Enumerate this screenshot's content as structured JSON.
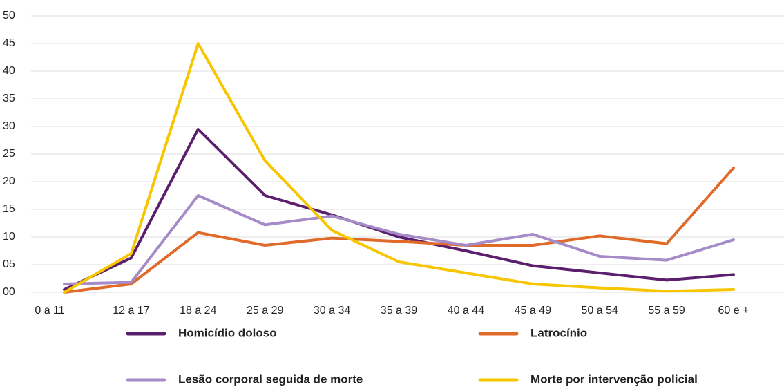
{
  "chart_data": {
    "type": "line",
    "categories": [
      "0 a 11",
      "12 a 17",
      "18 a 24",
      "25 a 29",
      "30 a 34",
      "35 a 39",
      "40 a 44",
      "45 a 49",
      "50 a 54",
      "55 a 59",
      "60 e +"
    ],
    "series": [
      {
        "name": "Homicídio doloso",
        "color": "#5b1f6e",
        "values": [
          0.5,
          6.2,
          29.5,
          17.5,
          14,
          10,
          7.5,
          4.8,
          3.5,
          2.2,
          3.2
        ]
      },
      {
        "name": "Latrocínio",
        "color": "#e06a2a",
        "values": [
          0,
          1.5,
          10.8,
          8.5,
          9.8,
          9.2,
          8.5,
          8.5,
          10.2,
          8.8,
          22.5
        ]
      },
      {
        "name": "Lesão corporal seguida de morte",
        "color": "#a58bc8",
        "values": [
          1.5,
          1.8,
          17.5,
          12.2,
          13.8,
          10.5,
          8.5,
          10.5,
          6.5,
          5.8,
          9.5
        ]
      },
      {
        "name": "Morte por intervenção policial",
        "color": "#f7c600",
        "values": [
          0,
          7,
          45,
          23.8,
          11.2,
          5.5,
          3.5,
          1.5,
          0.8,
          0.2,
          0.5
        ]
      }
    ],
    "ylim": [
      0,
      50
    ],
    "yticks": [
      {
        "value": 0,
        "label": "00"
      },
      {
        "value": 5,
        "label": "05"
      },
      10,
      15,
      20,
      25,
      30,
      35,
      40,
      45,
      50
    ],
    "grid": true,
    "legend": "bottom"
  }
}
